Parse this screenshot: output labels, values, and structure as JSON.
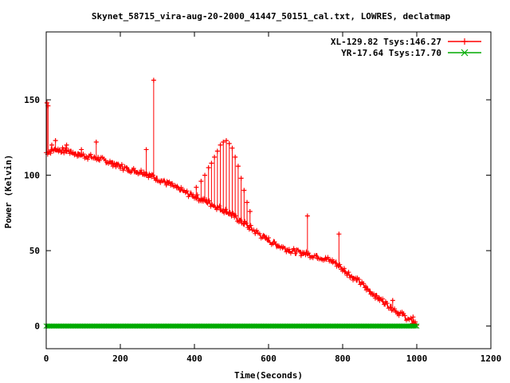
{
  "chart_data": {
    "type": "line",
    "title": "Skynet_58715_vira-aug-20-2000_41447_50151_cal.txt, LOWRES, declatmap",
    "xlabel": "Time(Seconds)",
    "ylabel": "Power (Kelvin)",
    "xlim": [
      0,
      1200
    ],
    "ylim": [
      -15,
      195
    ],
    "x_ticks": [
      0,
      200,
      400,
      600,
      800,
      1000,
      1200
    ],
    "y_ticks": [
      0,
      50,
      100,
      150
    ],
    "grid": false,
    "legend_position": "top-right",
    "series": [
      {
        "name": "XL-129.82 Tsys:146.27",
        "color": "#ff0000",
        "marker": "plus",
        "baseline_x": [
          0,
          20,
          60,
          100,
          140,
          180,
          220,
          260,
          300,
          340,
          380,
          420,
          460,
          500,
          540,
          580,
          620,
          660,
          700,
          740,
          780,
          820,
          860,
          900,
          940,
          980,
          1000
        ],
        "baseline_y": [
          115,
          117,
          116,
          113,
          111,
          108,
          104,
          102,
          98,
          93,
          88,
          84,
          79,
          74,
          67,
          60,
          54,
          50,
          48,
          46,
          42,
          34,
          26,
          18,
          11,
          4,
          1
        ],
        "spikes": [
          {
            "x": 2,
            "y": 148
          },
          {
            "x": 5,
            "y": 146
          },
          {
            "x": 15,
            "y": 120
          },
          {
            "x": 25,
            "y": 123
          },
          {
            "x": 55,
            "y": 120
          },
          {
            "x": 95,
            "y": 117
          },
          {
            "x": 135,
            "y": 122
          },
          {
            "x": 180,
            "y": 108
          },
          {
            "x": 270,
            "y": 117
          },
          {
            "x": 290,
            "y": 163
          },
          {
            "x": 330,
            "y": 95
          },
          {
            "x": 405,
            "y": 92
          },
          {
            "x": 418,
            "y": 96
          },
          {
            "x": 428,
            "y": 100
          },
          {
            "x": 438,
            "y": 105
          },
          {
            "x": 446,
            "y": 108
          },
          {
            "x": 454,
            "y": 112
          },
          {
            "x": 462,
            "y": 116
          },
          {
            "x": 470,
            "y": 120
          },
          {
            "x": 478,
            "y": 122
          },
          {
            "x": 486,
            "y": 123
          },
          {
            "x": 494,
            "y": 121
          },
          {
            "x": 502,
            "y": 118
          },
          {
            "x": 510,
            "y": 112
          },
          {
            "x": 518,
            "y": 106
          },
          {
            "x": 526,
            "y": 98
          },
          {
            "x": 534,
            "y": 90
          },
          {
            "x": 542,
            "y": 82
          },
          {
            "x": 550,
            "y": 76
          },
          {
            "x": 705,
            "y": 73
          },
          {
            "x": 790,
            "y": 61
          },
          {
            "x": 880,
            "y": 21
          },
          {
            "x": 935,
            "y": 17
          },
          {
            "x": 990,
            "y": 6
          }
        ]
      },
      {
        "name": "YR-17.64 Tsys:17.70",
        "color": "#00aa00",
        "marker": "x",
        "x": [
          0,
          1000
        ],
        "y": [
          0,
          0
        ]
      }
    ]
  }
}
